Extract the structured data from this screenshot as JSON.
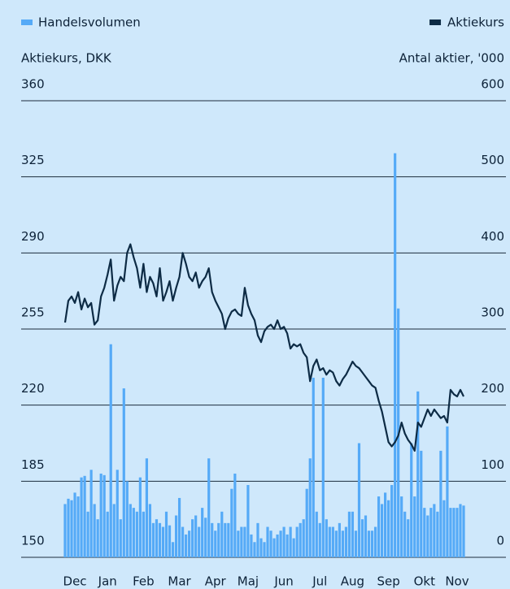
{
  "chart_data": {
    "type": "combo",
    "legend": "top",
    "y_label": "Aktiekurs, DKK",
    "y2_label": "Antal aktier, '000",
    "categories": [
      null,
      null,
      null,
      "Dec",
      null,
      null,
      null,
      null,
      null,
      null,
      null,
      null,
      null,
      "Jan",
      null,
      null,
      null,
      null,
      null,
      null,
      null,
      null,
      null,
      null,
      "Feb",
      null,
      null,
      null,
      null,
      null,
      null,
      null,
      null,
      null,
      null,
      "Mar",
      null,
      null,
      null,
      null,
      null,
      null,
      null,
      null,
      null,
      null,
      "Apr",
      null,
      null,
      null,
      null,
      null,
      null,
      null,
      null,
      null,
      "Maj",
      null,
      null,
      null,
      null,
      null,
      null,
      null,
      null,
      null,
      null,
      "Jun",
      null,
      null,
      null,
      null,
      null,
      null,
      null,
      null,
      null,
      null,
      "Jul",
      null,
      null,
      null,
      null,
      null,
      null,
      null,
      null,
      null,
      "Aug",
      null,
      null,
      null,
      null,
      null,
      null,
      null,
      null,
      null,
      null,
      "Sep",
      null,
      null,
      null,
      null,
      null,
      null,
      null,
      null,
      null,
      null,
      "Okt",
      null,
      null,
      null,
      null,
      null,
      null,
      null,
      null,
      null,
      "Nov",
      null,
      null
    ],
    "series": [
      {
        "name": "Handelsvolumen",
        "type": "bar",
        "axis": "y2",
        "color": "#55aaf7",
        "values": [
          70,
          77,
          75,
          85,
          80,
          105,
          107,
          60,
          115,
          70,
          50,
          110,
          108,
          60,
          280,
          70,
          115,
          50,
          222,
          100,
          70,
          65,
          60,
          105,
          60,
          130,
          70,
          45,
          50,
          45,
          40,
          60,
          42,
          20,
          55,
          78,
          40,
          30,
          35,
          50,
          55,
          40,
          65,
          52,
          130,
          45,
          35,
          45,
          60,
          45,
          45,
          90,
          110,
          35,
          40,
          40,
          95,
          30,
          20,
          45,
          25,
          20,
          40,
          35,
          25,
          30,
          35,
          40,
          30,
          40,
          25,
          40,
          45,
          50,
          90,
          130,
          236,
          60,
          45,
          236,
          50,
          40,
          40,
          35,
          45,
          35,
          40,
          60,
          60,
          35,
          150,
          50,
          55,
          35,
          35,
          40,
          80,
          70,
          85,
          75,
          95,
          531,
          327,
          80,
          60,
          50,
          150,
          80,
          218,
          140,
          65,
          55,
          65,
          70,
          60,
          140,
          75,
          172,
          65,
          65,
          65,
          70,
          68
        ]
      },
      {
        "name": "Aktiekurs",
        "type": "line",
        "axis": "y",
        "color": "#0d2b45",
        "values": [
          258,
          268,
          270,
          267,
          272,
          264,
          269,
          265,
          267,
          257,
          259,
          270,
          274,
          280,
          287,
          268,
          275,
          279,
          277,
          290,
          294,
          288,
          283,
          274,
          285,
          272,
          279,
          276,
          270,
          283,
          268,
          272,
          277,
          268,
          274,
          279,
          290,
          285,
          279,
          277,
          281,
          274,
          277,
          279,
          283,
          272,
          268,
          265,
          262,
          255,
          260,
          263,
          264,
          262,
          261,
          274,
          266,
          262,
          259,
          252,
          249,
          254,
          256,
          257,
          255,
          259,
          255,
          256,
          253,
          246,
          248,
          247,
          248,
          244,
          242,
          231,
          238,
          241,
          236,
          237,
          234,
          236,
          235,
          231,
          229,
          232,
          234,
          237,
          240,
          238,
          237,
          235,
          233,
          231,
          229,
          228,
          222,
          217,
          210,
          203,
          201,
          203,
          206,
          212,
          207,
          204,
          202,
          199,
          212,
          210,
          214,
          218,
          215,
          218,
          216,
          214,
          215,
          212,
          227,
          225,
          224,
          227,
          224
        ]
      }
    ],
    "ylim": [
      150,
      360
    ],
    "yticks": [
      150,
      185,
      220,
      255,
      290,
      325,
      360
    ],
    "y2lim": [
      0,
      600
    ],
    "y2ticks": [
      0,
      100,
      200,
      300,
      400,
      500,
      600
    ],
    "grid": true
  }
}
